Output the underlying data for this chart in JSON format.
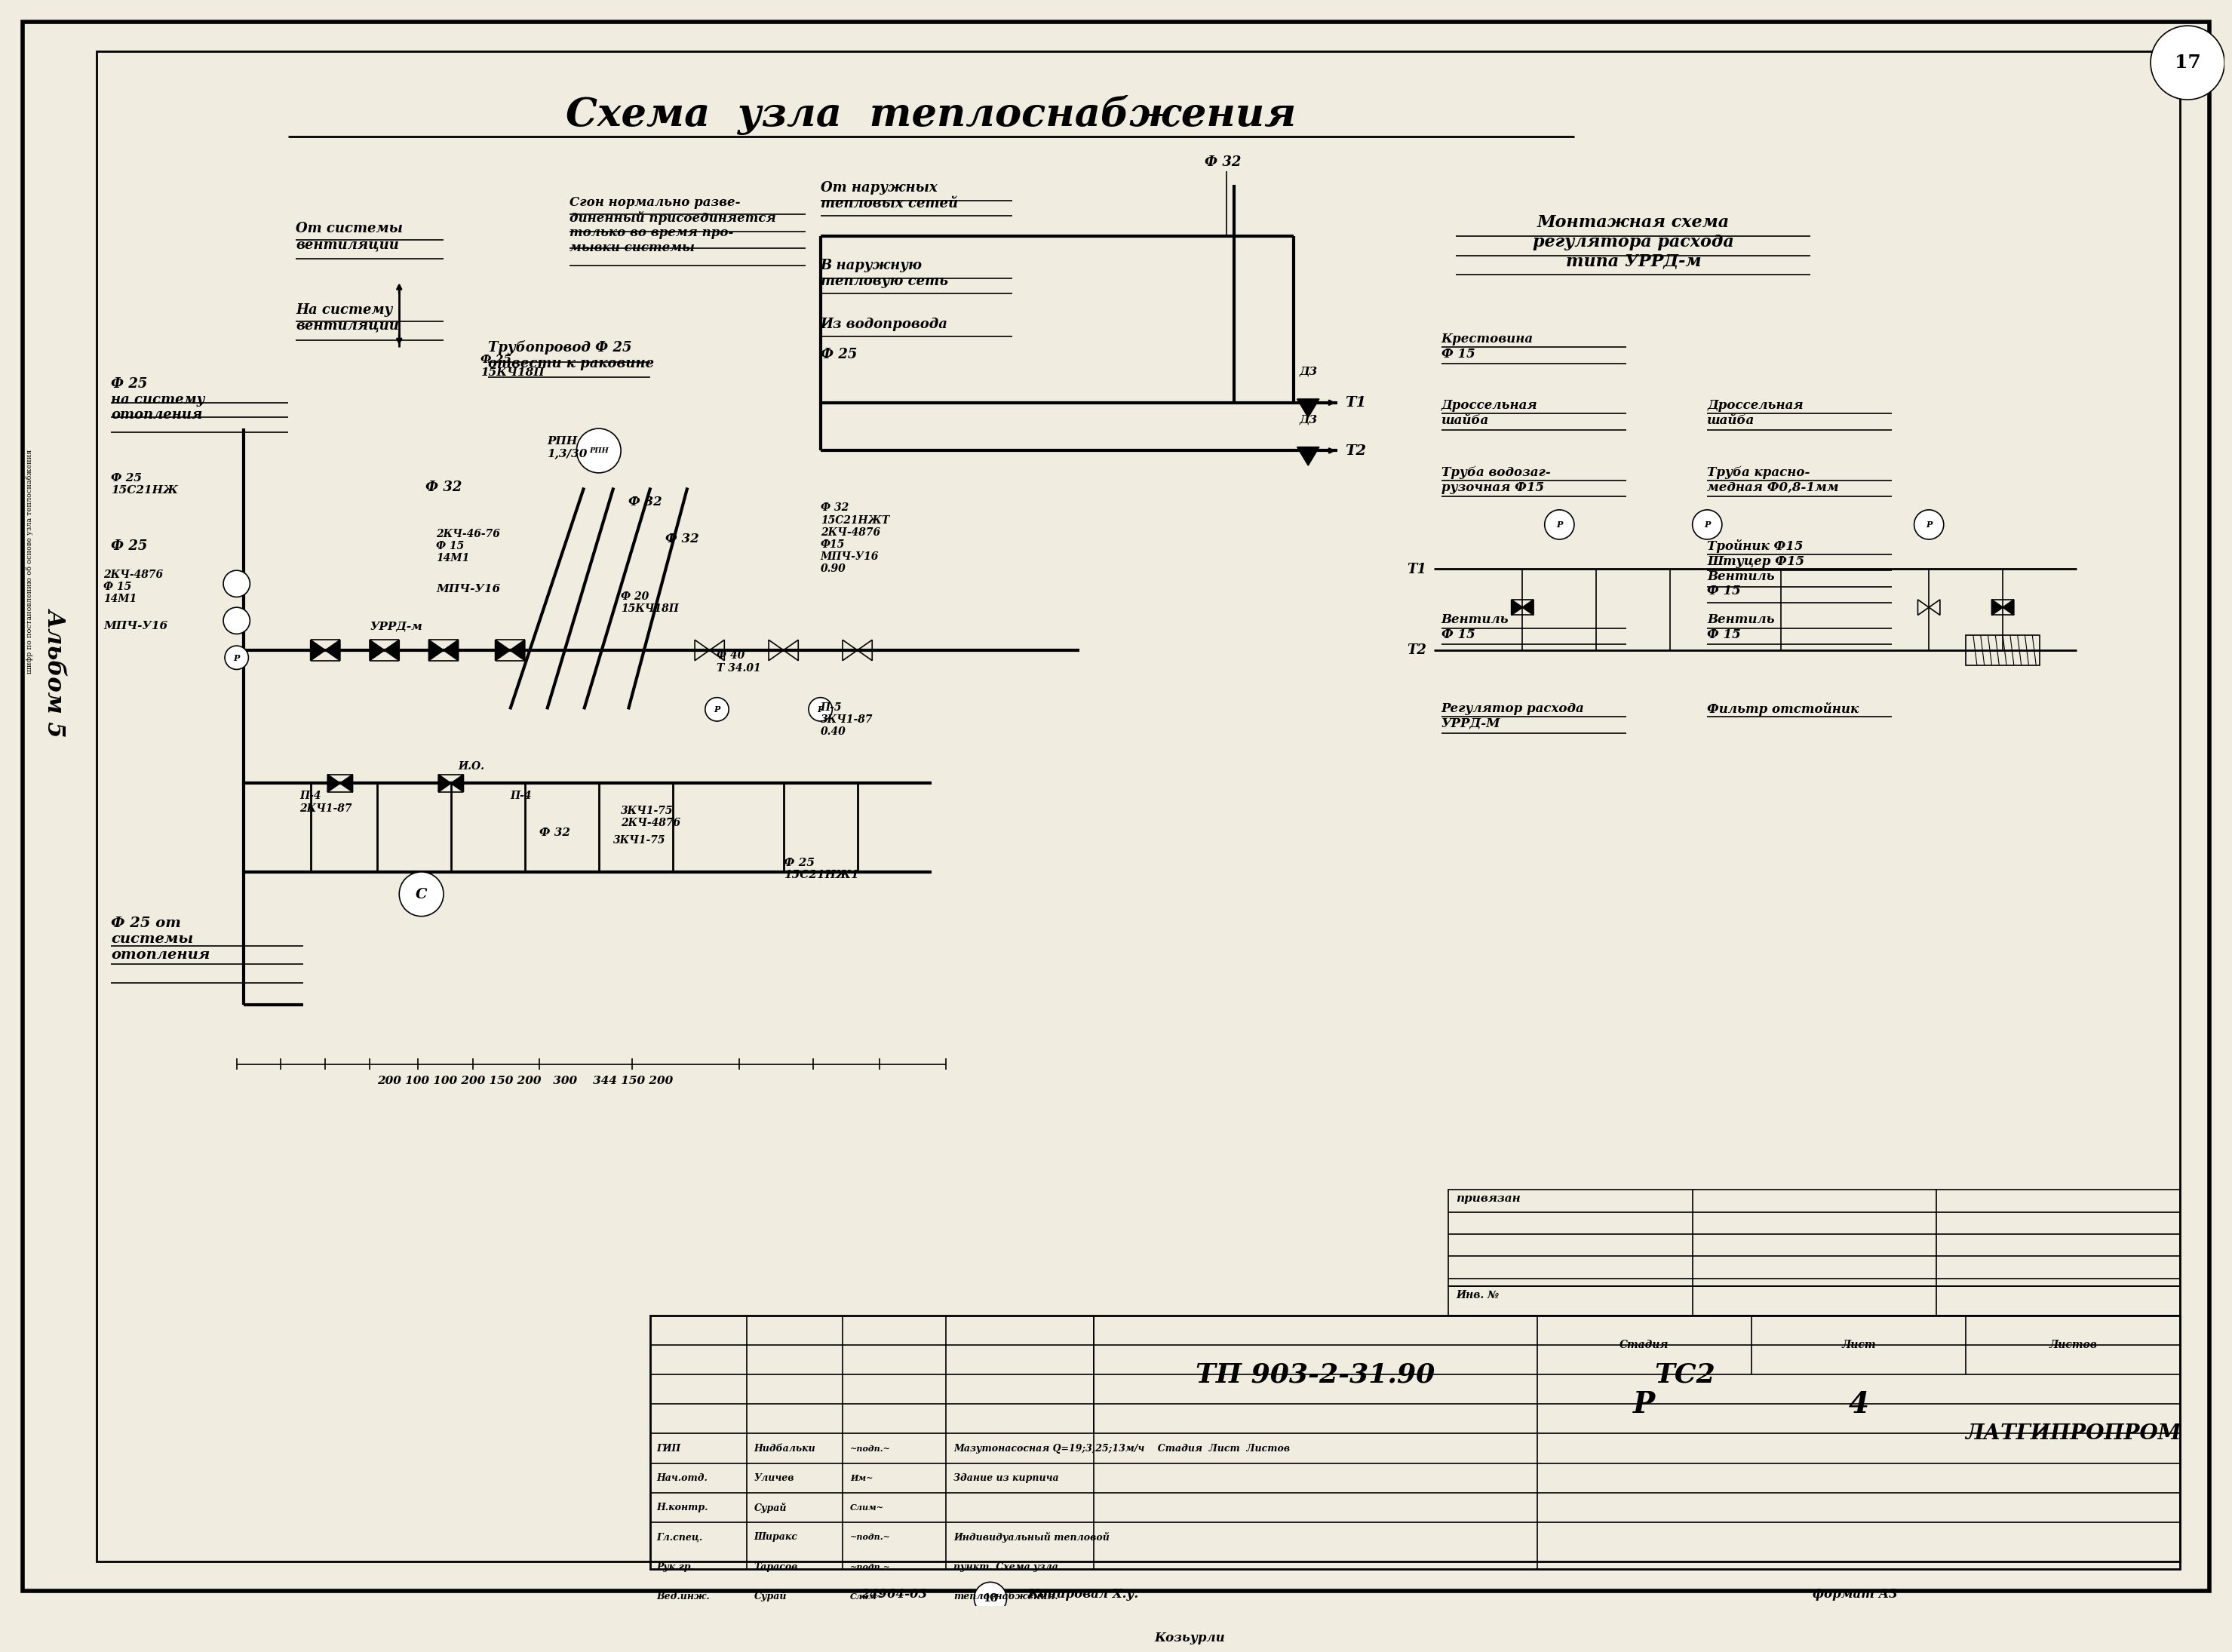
{
  "bg_color": "#f0ece0",
  "paper_color": "#f5f1e6",
  "title": "Схема  узла  теплоснабжения",
  "album_text": "Альбом 5",
  "page_number": "17",
  "drawing_number": "ТП 903-2-31.90",
  "drawing_code": "ТС2",
  "organization": "ЛАТГИПРОПРОМ",
  "format_text": "формат А3",
  "copy_text": "24964-03",
  "sheet_num": "18",
  "copy_label": "Копировал Х.у.",
  "stage": "Р",
  "sheet": "4"
}
